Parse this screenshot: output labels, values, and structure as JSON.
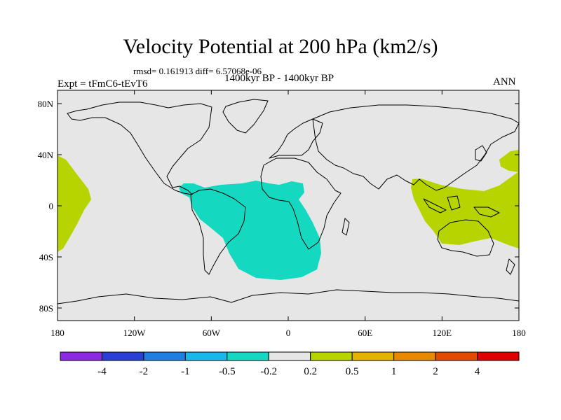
{
  "title": "Velocity Potential at 200 hPa (km2/s)",
  "stats": "rmsd= 0.161913  diff= 6.57068e-06",
  "period": "1400kyr BP - 1400kyr BP",
  "experiment": "Expt = tFmC6-tEvT6",
  "season": "ANN",
  "axes": {
    "lat_labels": [
      "80N",
      "40N",
      "0",
      "40S",
      "80S"
    ],
    "lon_labels": [
      "180",
      "120W",
      "60W",
      "0",
      "60E",
      "120E",
      "180"
    ]
  },
  "colorbar": {
    "colors": [
      "#8a2be2",
      "#2a3fd6",
      "#1e7fe0",
      "#18b8e8",
      "#14d8c0",
      "#e6e6e6",
      "#b8d400",
      "#e2b400",
      "#e88a00",
      "#e24a00",
      "#e00000"
    ],
    "labels": [
      "-4",
      "-2",
      "-1",
      "-0.5",
      "-0.2",
      "0.2",
      "0.5",
      "1",
      "2",
      "4"
    ]
  },
  "colors": {
    "background": "#e6e6e6",
    "negative_anomaly": "#14d8c0",
    "positive_anomaly": "#b8d400",
    "coast": "#000000"
  }
}
